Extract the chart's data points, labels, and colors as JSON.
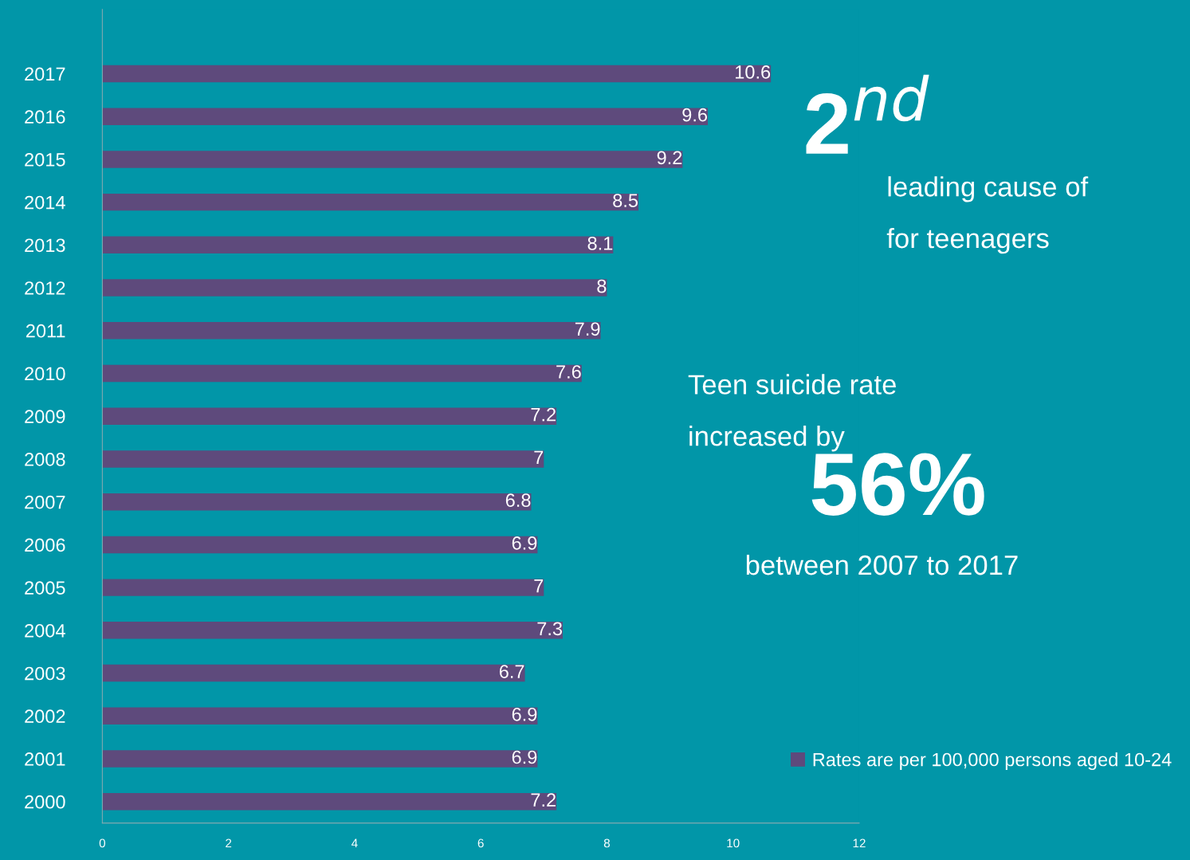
{
  "chart_data": {
    "type": "bar",
    "orientation": "horizontal",
    "categories": [
      "2017",
      "2016",
      "2015",
      "2014",
      "2013",
      "2012",
      "2011",
      "2010",
      "2009",
      "2008",
      "2007",
      "2006",
      "2005",
      "2004",
      "2003",
      "2002",
      "2001",
      "2000"
    ],
    "series": [
      {
        "name": "Rates are per 100,000 persons aged 10-24",
        "color": "#5e4a7c",
        "values": [
          10.6,
          9.6,
          9.2,
          8.5,
          8.1,
          8,
          7.9,
          7.6,
          7.2,
          7,
          6.8,
          6.9,
          7,
          7.3,
          6.7,
          6.9,
          6.9,
          7.2
        ]
      }
    ],
    "xlim": [
      0,
      12
    ],
    "xticks": [
      0,
      2,
      4,
      6,
      8,
      10,
      12
    ],
    "data_labels": true,
    "grid": false,
    "legend": "bottom right",
    "annotations": [
      "2$^{nd}$",
      "leading cause of",
      "for teenagers",
      "Teen suicide rate",
      "increased by",
      "56%",
      "between 2007 to 2017"
    ]
  }
}
